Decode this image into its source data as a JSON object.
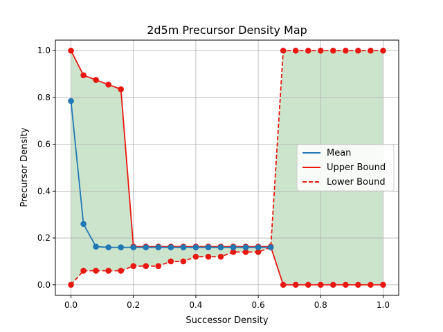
{
  "chart_data": {
    "type": "line",
    "title": "2d5m Precursor Density Map",
    "xlabel": "Successor Density",
    "ylabel": "Precursor Density",
    "xlim": [
      -0.05,
      1.05
    ],
    "ylim": [
      -0.045,
      1.045
    ],
    "xticks": [
      0.0,
      0.2,
      0.4,
      0.6,
      0.8,
      1.0
    ],
    "xtick_labels": [
      "0.0",
      "0.2",
      "0.4",
      "0.6",
      "0.8",
      "1.0"
    ],
    "yticks": [
      0.0,
      0.2,
      0.4,
      0.6,
      0.8,
      1.0
    ],
    "ytick_labels": [
      "0.0",
      "0.2",
      "0.4",
      "0.6",
      "0.8",
      "1.0"
    ],
    "grid": true,
    "legend_position": "center-right",
    "x": [
      0.0,
      0.04,
      0.08,
      0.12,
      0.16,
      0.2,
      0.24,
      0.28,
      0.32,
      0.36,
      0.4,
      0.44,
      0.48,
      0.52,
      0.56,
      0.6,
      0.64,
      0.68,
      0.72,
      0.76,
      0.8,
      0.84,
      0.88,
      0.92,
      0.96,
      1.0
    ],
    "fill_between": {
      "upper": "Upper Bound",
      "lower": "Lower Bound",
      "color": "#cde4cc"
    },
    "series": [
      {
        "name": "Mean",
        "color": "#1f77b4",
        "linestyle": "solid",
        "values": [
          0.785,
          0.26,
          0.163,
          0.16,
          0.16,
          0.16,
          0.16,
          0.16,
          0.16,
          0.16,
          0.16,
          0.16,
          0.16,
          0.16,
          0.16,
          0.16,
          0.16,
          null,
          null,
          null,
          null,
          null,
          null,
          null,
          null,
          null
        ]
      },
      {
        "name": "Upper Bound",
        "color": "#e8170f",
        "linestyle": "solid",
        "values": [
          1.0,
          0.895,
          0.875,
          0.855,
          0.835,
          0.163,
          0.163,
          0.163,
          0.163,
          0.163,
          0.163,
          0.163,
          0.163,
          0.163,
          0.163,
          0.163,
          0.163,
          0.0,
          0.0,
          0.0,
          0.0,
          0.0,
          0.0,
          0.0,
          0.0,
          0.0
        ]
      },
      {
        "name": "Lower Bound",
        "color": "#e8170f",
        "linestyle": "dashed",
        "values": [
          0.0,
          0.06,
          0.06,
          0.06,
          0.06,
          0.08,
          0.08,
          0.08,
          0.1,
          0.1,
          0.12,
          0.12,
          0.12,
          0.14,
          0.14,
          0.14,
          0.16,
          1.0,
          1.0,
          1.0,
          1.0,
          1.0,
          1.0,
          1.0,
          1.0,
          1.0
        ]
      }
    ]
  }
}
